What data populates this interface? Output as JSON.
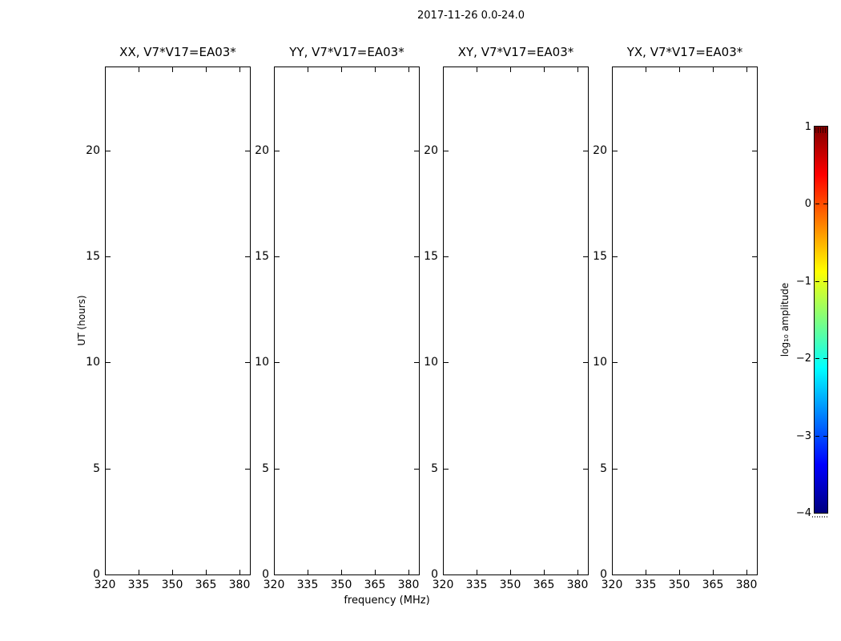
{
  "figure": {
    "suptitle": "2017-11-26 0.0-24.0",
    "xlabel": "frequency (MHz)",
    "ylabel": "UT (hours)"
  },
  "panels": [
    {
      "id": "XX",
      "title": "XX, V7*V17=EA03*"
    },
    {
      "id": "YY",
      "title": "YY, V7*V17=EA03*"
    },
    {
      "id": "XY",
      "title": "XY, V7*V17=EA03*"
    },
    {
      "id": "YX",
      "title": "YX, V7*V17=EA03*"
    }
  ],
  "axes": {
    "x_tick_labels": [
      "320",
      "335",
      "350",
      "365",
      "380"
    ],
    "y_tick_labels": [
      "0",
      "5",
      "10",
      "15",
      "20"
    ]
  },
  "colorbar": {
    "label": "log₁₀ amplitude",
    "tick_labels": [
      "1",
      "0",
      "−1",
      "−2",
      "−3",
      "−4"
    ],
    "colormap": "jet",
    "gradient_top_to_bottom": [
      "#7f0000",
      "#ff0000",
      "#ff7f00",
      "#ffff00",
      "#7fff7f",
      "#00ffff",
      "#007fff",
      "#0000ff",
      "#00007f"
    ]
  },
  "chart_data": {
    "type": "heatmap",
    "title": "2017-11-26 0.0-24.0",
    "xlabel": "frequency (MHz)",
    "ylabel": "UT (hours)",
    "x_ticks": [
      320,
      335,
      350,
      365,
      380
    ],
    "x_range": [
      320,
      385
    ],
    "y_ticks": [
      0,
      5,
      10,
      15,
      20
    ],
    "y_range": [
      0,
      24
    ],
    "grid": false,
    "panels": [
      {
        "title": "XX, V7*V17=EA03*",
        "values": []
      },
      {
        "title": "YY, V7*V17=EA03*",
        "values": []
      },
      {
        "title": "XY, V7*V17=EA03*",
        "values": []
      },
      {
        "title": "YX, V7*V17=EA03*",
        "values": []
      }
    ],
    "colorbar": {
      "label": "log10 amplitude",
      "ticks": [
        1,
        0,
        -1,
        -2,
        -3,
        -4
      ],
      "range": [
        -4,
        1
      ],
      "colormap": "jet",
      "legend_position": "right"
    }
  }
}
